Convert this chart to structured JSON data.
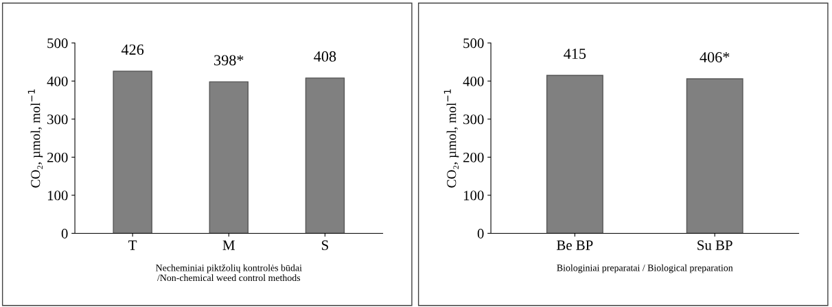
{
  "chart_data": [
    {
      "type": "bar",
      "categories": [
        "T",
        "M",
        "S"
      ],
      "values": [
        426,
        398,
        408
      ],
      "value_labels": [
        "426",
        "398*",
        "408"
      ],
      "color": "#808080",
      "ylim": [
        0,
        500
      ],
      "yticks": [
        0,
        100,
        200,
        300,
        400,
        500
      ],
      "ylabel": "CO₂, µmol, mol$^{−1}$",
      "xlabel": "Necheminiai piktžolių kontrolės būdai\n/Non-chemical weed control methods",
      "grid": false
    },
    {
      "type": "bar",
      "categories": [
        "Be BP",
        "Su BP"
      ],
      "values": [
        415,
        406
      ],
      "value_labels": [
        "415",
        "406*"
      ],
      "color": "#808080",
      "ylim": [
        0,
        500
      ],
      "yticks": [
        0,
        100,
        200,
        300,
        400,
        500
      ],
      "ylabel": "CO₂, µmol, mol$^{−1}$",
      "xlabel": "Biologiniai preparatai / Biological preparation",
      "grid": false
    }
  ]
}
